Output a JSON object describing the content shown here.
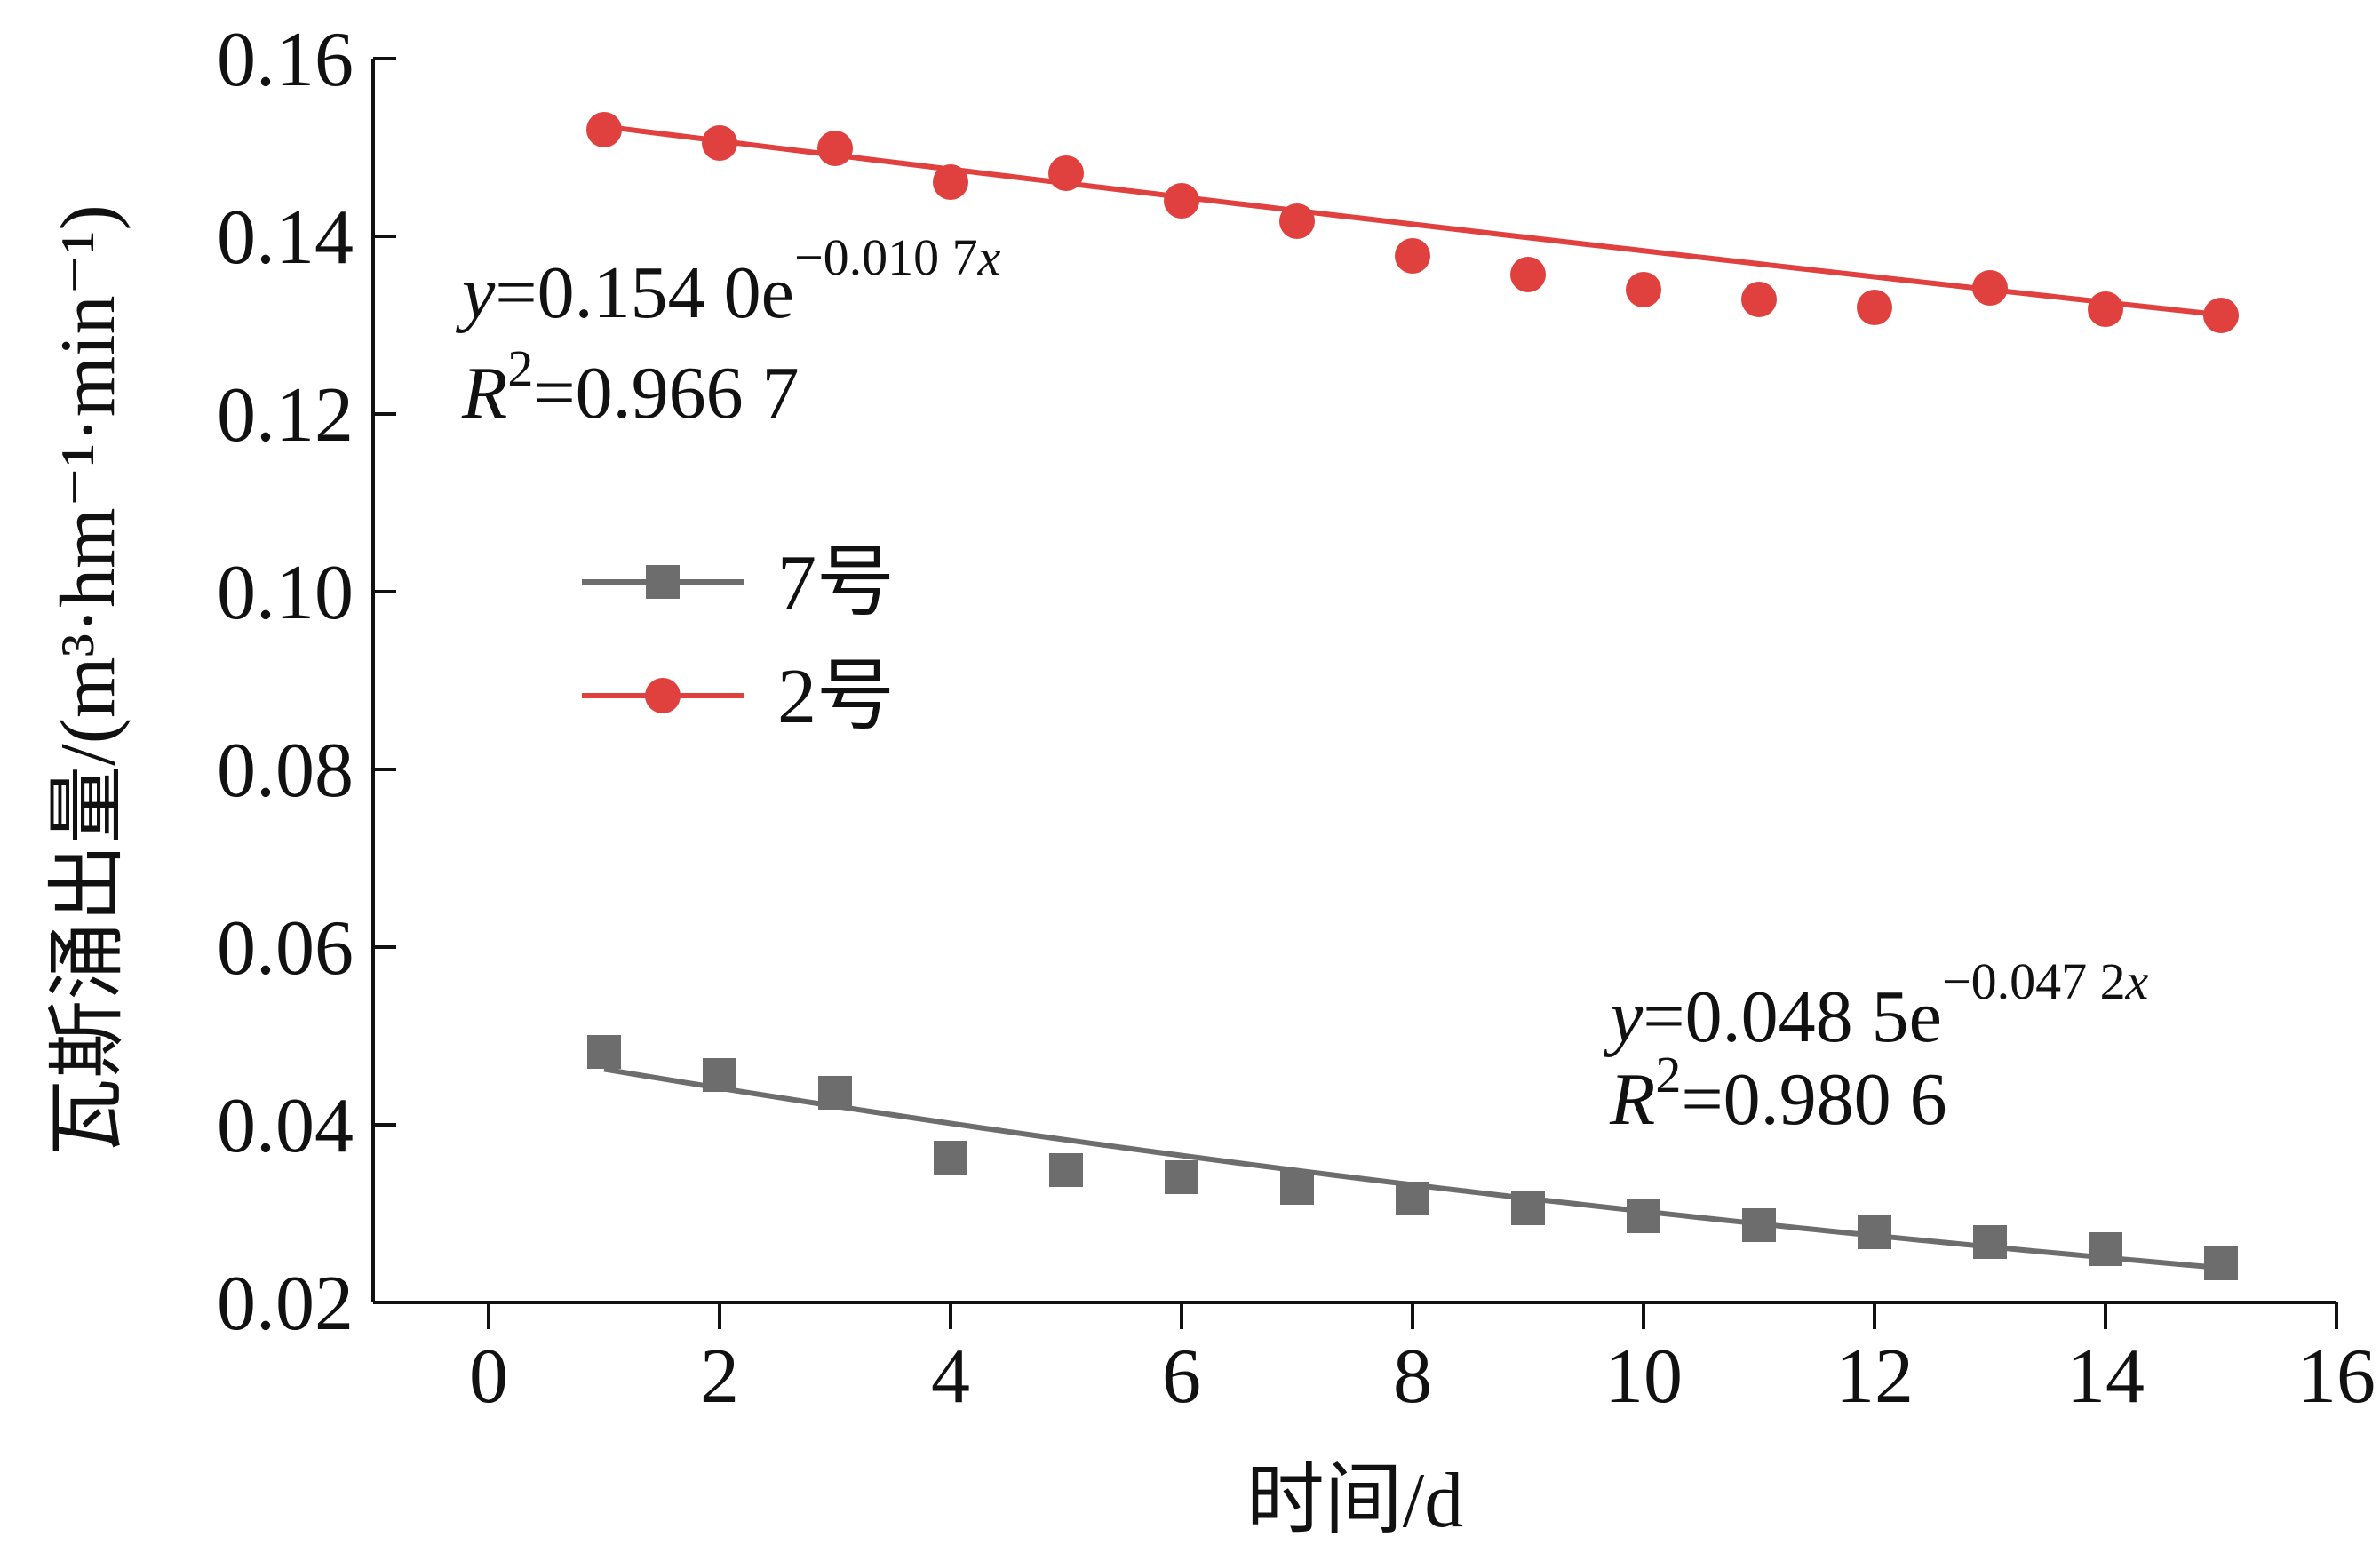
{
  "chart_data": {
    "type": "scatter",
    "xlabel": "时间/d",
    "ylabel": "瓦斯涌出量/(m³·hm⁻¹·min⁻¹)",
    "xlim": [
      -1,
      16
    ],
    "ylim": [
      0.02,
      0.16
    ],
    "xticks": [
      0,
      2,
      4,
      6,
      8,
      10,
      12,
      14,
      16
    ],
    "yticks": [
      0.02,
      0.04,
      0.06,
      0.08,
      0.1,
      0.12,
      0.14,
      0.16
    ],
    "xtick_labels": [
      "0",
      "2",
      "4",
      "6",
      "8",
      "10",
      "12",
      "14",
      "16"
    ],
    "ytick_labels": [
      "0.02",
      "0.04",
      "0.06",
      "0.08",
      "0.10",
      "0.12",
      "0.14",
      "0.16"
    ],
    "grid": false,
    "legend_position": "middle-left",
    "series": [
      {
        "name": "7号",
        "marker": "square",
        "color": "#6d6d6d",
        "x": [
          1,
          2,
          3,
          4,
          5,
          6,
          7,
          8,
          9,
          10,
          11,
          12,
          13,
          14,
          15
        ],
        "y": [
          0.0482,
          0.0456,
          0.0436,
          0.0363,
          0.0349,
          0.0341,
          0.0329,
          0.0317,
          0.0306,
          0.0297,
          0.0287,
          0.0279,
          0.0268,
          0.026,
          0.0244
        ],
        "fit": {
          "a": 0.0485,
          "b": -0.0472,
          "x_range": [
            1,
            15
          ]
        },
        "equation": {
          "y_var": "y",
          "main": "=0.048 5e",
          "exponent": "−0.047 2",
          "exp_var": "x",
          "r_var": "R",
          "r_sup": "2",
          "r_value": "=0.980 6"
        }
      },
      {
        "name": "2号",
        "marker": "circle",
        "color": "#e0403e",
        "x": [
          1,
          2,
          3,
          4,
          5,
          6,
          7,
          8,
          9,
          10,
          11,
          12,
          13,
          14,
          15
        ],
        "y": [
          0.152,
          0.1505,
          0.1499,
          0.1461,
          0.1471,
          0.144,
          0.1417,
          0.1378,
          0.1357,
          0.134,
          0.1329,
          0.132,
          0.1342,
          0.1318,
          0.1311
        ],
        "fit": {
          "a": 0.154,
          "b": -0.0107,
          "x_range": [
            1,
            15
          ]
        },
        "equation": {
          "y_var": "y",
          "main": "=0.154 0e",
          "exponent": "−0.010 7",
          "exp_var": "x",
          "r_var": "R",
          "r_sup": "2",
          "r_value": "=0.966 7"
        }
      }
    ]
  }
}
